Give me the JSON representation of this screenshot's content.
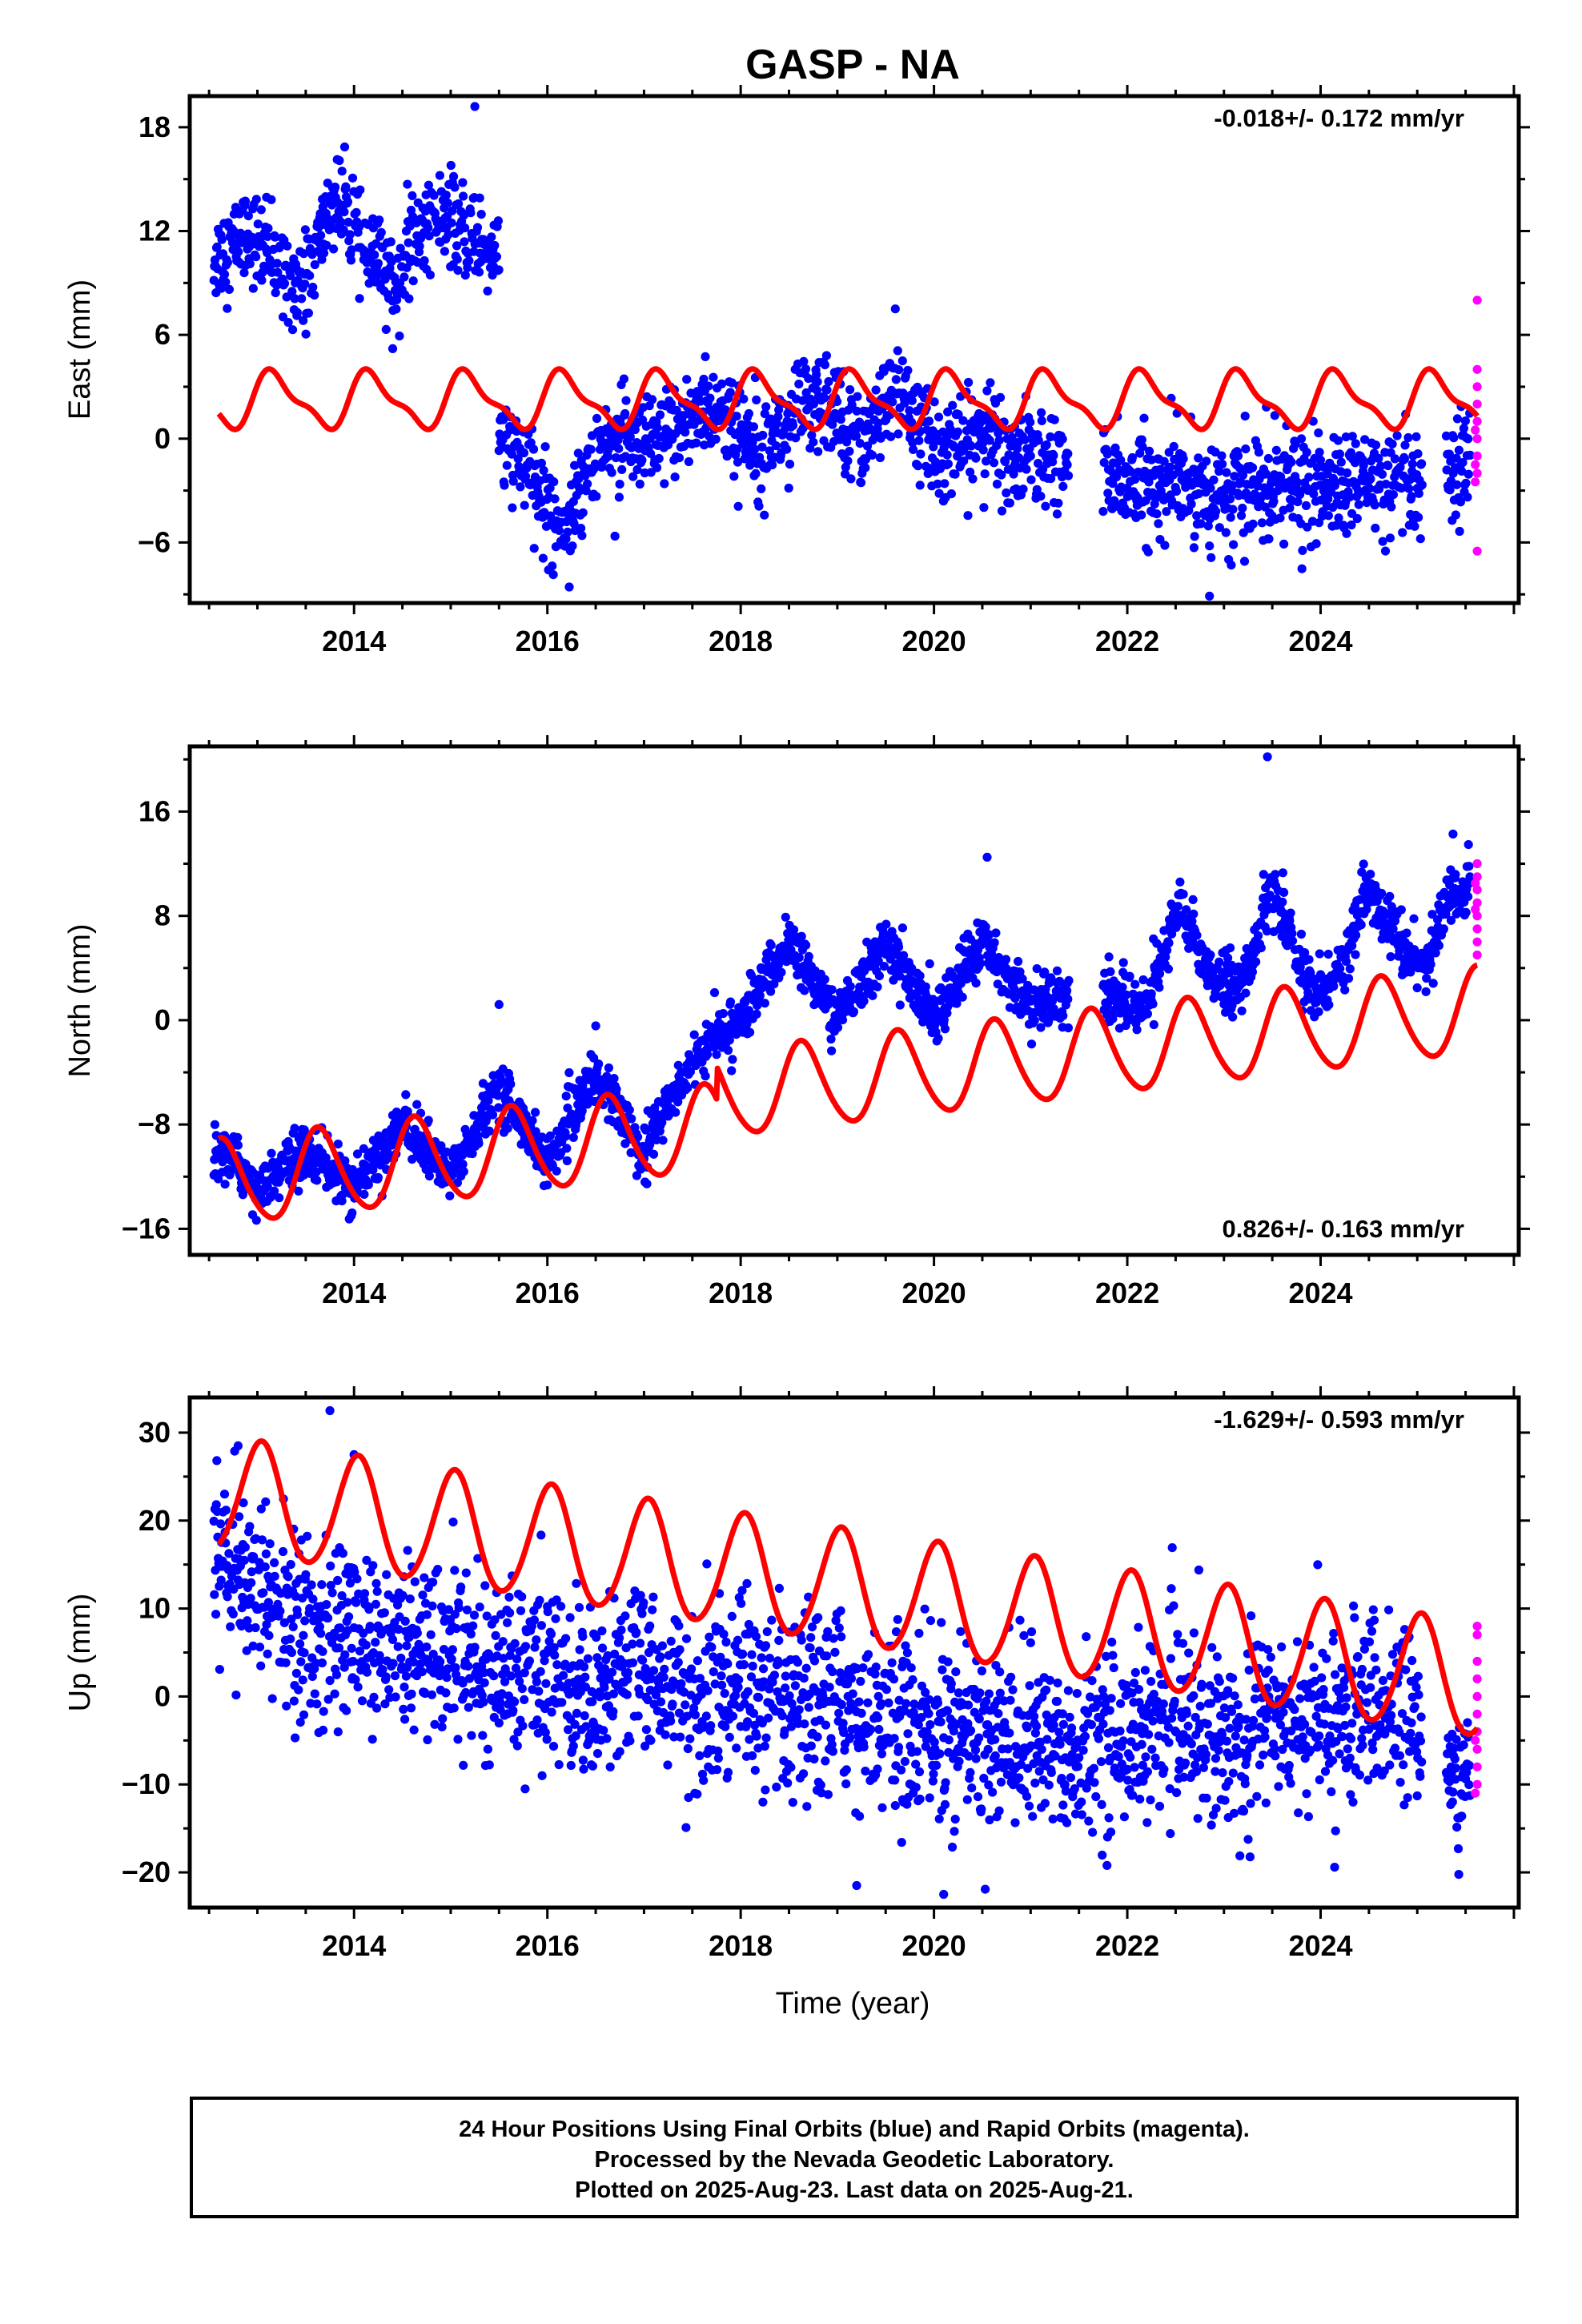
{
  "title": "GASP - NA",
  "x_label": "Time (year)",
  "colors": {
    "final": "#0000ff",
    "rapid": "#ff00ff",
    "model": "#ff0000"
  },
  "caption": {
    "line1": "24 Hour Positions Using Final Orbits (blue) and Rapid Orbits (magenta).",
    "line2": "Processed by the Nevada Geodetic Laboratory.",
    "line3": "Plotted on 2025-Aug-23. Last data on 2025-Aug-21."
  },
  "chart_data": [
    {
      "type": "scatter",
      "ylabel": "East (mm)",
      "xlim": [
        2012.3,
        2026.05
      ],
      "ylim": [
        -9.5,
        19.8
      ],
      "xticks": [
        2014,
        2016,
        2018,
        2020,
        2022,
        2024
      ],
      "yticks": [
        -6,
        0,
        6,
        12,
        18
      ],
      "velocity": "-0.018+/- 0.172 mm/yr",
      "velocity_position": "top-right",
      "final_orbits": {
        "segments": [
          {
            "start": 2012.55,
            "end": 2015.5,
            "step": 0.0055,
            "points": [
              [
                2012.6,
                10.5
              ],
              [
                2012.9,
                12
              ],
              [
                2013.2,
                10
              ],
              [
                2013.5,
                9
              ],
              [
                2013.8,
                14
              ],
              [
                2014.1,
                11
              ],
              [
                2014.4,
                9
              ],
              [
                2014.8,
                13
              ],
              [
                2015.1,
                12
              ],
              [
                2015.45,
                11
              ]
            ],
            "noise": 1.3
          },
          {
            "start": 2015.5,
            "end": 2021.4,
            "step": 0.0055,
            "points": [
              [
                2015.5,
                0
              ],
              [
                2015.8,
                -2
              ],
              [
                2016.0,
                -4
              ],
              [
                2016.2,
                -5
              ],
              [
                2016.45,
                -1
              ],
              [
                2016.7,
                0
              ],
              [
                2017.0,
                -1
              ],
              [
                2017.3,
                0.5
              ],
              [
                2017.7,
                2
              ],
              [
                2018.0,
                0
              ],
              [
                2018.4,
                0.5
              ],
              [
                2018.7,
                2
              ],
              [
                2019.0,
                1.5
              ],
              [
                2019.3,
                0
              ],
              [
                2019.6,
                3
              ],
              [
                2019.9,
                0
              ],
              [
                2020.2,
                -1
              ],
              [
                2020.5,
                0.5
              ],
              [
                2020.8,
                -1
              ],
              [
                2021.1,
                -1
              ],
              [
                2021.4,
                -1.5
              ]
            ],
            "noise": 1.4
          },
          {
            "start": 2021.75,
            "end": 2025.05,
            "step": 0.0055,
            "points": [
              [
                2021.75,
                -2
              ],
              [
                2022.2,
                -3
              ],
              [
                2022.6,
                -2.5
              ],
              [
                2023.0,
                -3.5
              ],
              [
                2023.5,
                -2.5
              ],
              [
                2024.0,
                -3
              ],
              [
                2024.5,
                -2.5
              ],
              [
                2025.0,
                -3
              ]
            ],
            "noise": 1.5
          },
          {
            "start": 2025.3,
            "end": 2025.55,
            "step": 0.0055,
            "points": [
              [
                2025.3,
                -3
              ],
              [
                2025.55,
                -1.5
              ]
            ],
            "noise": 1.5
          }
        ],
        "outliers": [
          [
            2015.25,
            19.2
          ],
          [
            2014.4,
            5.2
          ],
          [
            2019.6,
            7.5
          ],
          [
            2022.85,
            -9.1
          ]
        ]
      },
      "rapid_orbits": {
        "points": [
          [
            2025.62,
            8
          ],
          [
            2025.62,
            4
          ],
          [
            2025.62,
            3
          ],
          [
            2025.62,
            2
          ],
          [
            2025.62,
            1
          ],
          [
            2025.62,
            0
          ],
          [
            2025.62,
            -1
          ],
          [
            2025.62,
            -2
          ],
          [
            2025.62,
            -6.5
          ],
          [
            2025.6,
            -1.5
          ],
          [
            2025.6,
            0.5
          ],
          [
            2025.6,
            -2.5
          ]
        ]
      },
      "model": {
        "start": 2012.6,
        "end": 2025.62,
        "offsets": [
          {
            "at": 2012.0,
            "value": 2.2
          }
        ],
        "annual": [
          1.35,
          0.6
        ],
        "semiannual": [
          0.45,
          0.3
        ],
        "trend": 0
      }
    },
    {
      "type": "scatter",
      "ylabel": "North (mm)",
      "xlim": [
        2012.3,
        2026.05
      ],
      "ylim": [
        -18,
        21
      ],
      "xticks": [
        2014,
        2016,
        2018,
        2020,
        2022,
        2024
      ],
      "yticks": [
        -16,
        -8,
        0,
        8,
        16
      ],
      "velocity": "0.826+/- 0.163 mm/yr",
      "velocity_position": "bottom-right",
      "final_orbits": {
        "segments": [
          {
            "start": 2012.55,
            "end": 2021.4,
            "step": 0.005,
            "points": [
              [
                2012.55,
                -10
              ],
              [
                2012.8,
                -11
              ],
              [
                2013.0,
                -13
              ],
              [
                2013.5,
                -10
              ],
              [
                2014.0,
                -13
              ],
              [
                2014.5,
                -8
              ],
              [
                2015.0,
                -12
              ],
              [
                2015.5,
                -5
              ],
              [
                2016.0,
                -11
              ],
              [
                2016.5,
                -4
              ],
              [
                2017.0,
                -10
              ],
              [
                2017.5,
                -3
              ],
              [
                2017.8,
                -1
              ],
              [
                2018.0,
                0
              ],
              [
                2018.5,
                6
              ],
              [
                2019.0,
                0
              ],
              [
                2019.5,
                6
              ],
              [
                2020.0,
                0
              ],
              [
                2020.5,
                6
              ],
              [
                2021.0,
                1
              ],
              [
                2021.4,
                2
              ]
            ],
            "noise": 1.0
          },
          {
            "start": 2021.75,
            "end": 2025.55,
            "step": 0.005,
            "points": [
              [
                2021.75,
                2
              ],
              [
                2022.2,
                1
              ],
              [
                2022.55,
                9
              ],
              [
                2022.9,
                3
              ],
              [
                2023.2,
                3
              ],
              [
                2023.5,
                10
              ],
              [
                2023.9,
                2
              ],
              [
                2024.2,
                4
              ],
              [
                2024.5,
                10
              ],
              [
                2024.9,
                5
              ],
              [
                2025.1,
                4
              ],
              [
                2025.3,
                9
              ],
              [
                2025.55,
                11
              ]
            ],
            "noise": 1.1
          }
        ],
        "outliers": [
          [
            2023.45,
            20.2
          ],
          [
            2015.5,
            1.2
          ],
          [
            2020.55,
            12.5
          ]
        ]
      },
      "rapid_orbits": {
        "points": [
          [
            2025.62,
            12
          ],
          [
            2025.62,
            11
          ],
          [
            2025.62,
            10
          ],
          [
            2025.62,
            9
          ],
          [
            2025.62,
            8
          ],
          [
            2025.62,
            7
          ],
          [
            2025.62,
            6
          ],
          [
            2025.62,
            5
          ],
          [
            2025.6,
            10.5
          ],
          [
            2025.6,
            8.5
          ]
        ]
      },
      "model": {
        "start": 2012.6,
        "end": 2025.62,
        "offsets": [
          {
            "at": 2012.0,
            "value": -7.3
          },
          {
            "at": 2017.75,
            "value": 2.5
          }
        ],
        "annual": [
          -2.5,
          -2.1
        ],
        "semiannual": [
          0.3,
          0.2
        ],
        "trend": 0.826
      }
    },
    {
      "type": "scatter",
      "ylabel": "Up (mm)",
      "xlim": [
        2012.3,
        2026.05
      ],
      "ylim": [
        -24,
        34
      ],
      "xticks": [
        2014,
        2016,
        2018,
        2020,
        2022,
        2024
      ],
      "yticks": [
        -20,
        -10,
        0,
        10,
        20,
        30
      ],
      "velocity": "-1.629+/- 0.593 mm/yr",
      "velocity_position": "top-right",
      "final_orbits": {
        "segments": [
          {
            "start": 2012.55,
            "end": 2025.05,
            "step": 0.005,
            "points": [
              [
                2012.55,
                16
              ],
              [
                2013.0,
                12
              ],
              [
                2013.5,
                6
              ],
              [
                2014.0,
                8
              ],
              [
                2014.5,
                4
              ],
              [
                2015.0,
                6
              ],
              [
                2015.5,
                2
              ],
              [
                2016.0,
                4
              ],
              [
                2016.5,
                0
              ],
              [
                2017.0,
                4
              ],
              [
                2017.5,
                -1
              ],
              [
                2018.0,
                2
              ],
              [
                2018.5,
                -3
              ],
              [
                2019.0,
                0
              ],
              [
                2019.5,
                -3
              ],
              [
                2020.0,
                -4
              ],
              [
                2020.5,
                -5
              ],
              [
                2021.0,
                -5
              ],
              [
                2021.4,
                -7
              ],
              [
                2021.75,
                -4
              ],
              [
                2022.0,
                -5
              ],
              [
                2022.5,
                -2
              ],
              [
                2023.0,
                -5
              ],
              [
                2023.5,
                -2
              ],
              [
                2024.0,
                -3
              ],
              [
                2024.5,
                -1
              ],
              [
                2025.05,
                -3
              ]
            ],
            "noise": 5.0
          },
          {
            "start": 2025.3,
            "end": 2025.55,
            "step": 0.005,
            "points": [
              [
                2025.3,
                -10
              ],
              [
                2025.55,
                -9
              ]
            ],
            "noise": 3.5
          }
        ],
        "outliers": [
          [
            2013.75,
            32.5
          ],
          [
            2012.8,
            28.5
          ],
          [
            2014.0,
            27.5
          ],
          [
            2020.1,
            -22.5
          ],
          [
            2019.2,
            -21.5
          ]
        ]
      },
      "rapid_orbits": {
        "points": [
          [
            2025.62,
            8
          ],
          [
            2025.62,
            7
          ],
          [
            2025.62,
            4
          ],
          [
            2025.62,
            2
          ],
          [
            2025.62,
            0
          ],
          [
            2025.62,
            -2
          ],
          [
            2025.62,
            -4
          ],
          [
            2025.62,
            -6
          ],
          [
            2025.62,
            -8
          ],
          [
            2025.62,
            -10
          ],
          [
            2025.6,
            -11
          ],
          [
            2025.6,
            -5
          ]
        ]
      },
      "model": {
        "start": 2012.6,
        "end": 2025.62,
        "offsets": [
          {
            "at": 2012.0,
            "value": 12.4
          }
        ],
        "annual": [
          1.5,
          6.3
        ],
        "semiannual": [
          0.4,
          0.3
        ],
        "trend": -1.629
      }
    }
  ]
}
